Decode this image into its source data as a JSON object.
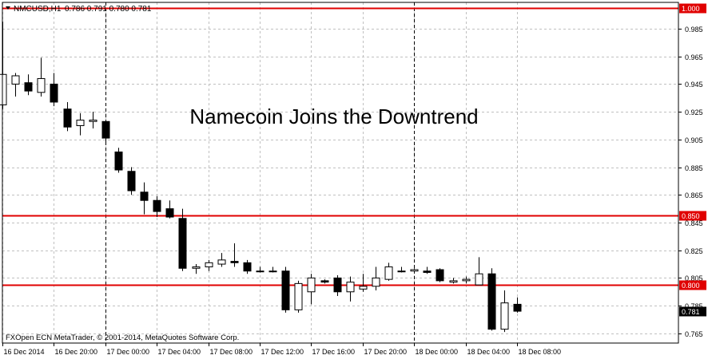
{
  "header": {
    "symbol_label": "NMCUSD,H1",
    "ohlc_label": "0.786 0.791 0.780 0.781",
    "dropdown_icon": "triangle-down-icon"
  },
  "annotation": "Namecoin Joins the Downtrend",
  "copyright": "FXOpen ECN MetaTrader, © 2001-2014, MetaQuotes Software Corp.",
  "colors": {
    "background": "#ffffff",
    "grid": "#c0c0c0",
    "candle": "#000000",
    "hline": "#e00000",
    "last_price_bg": "#000000"
  },
  "chart_data": {
    "type": "candlestick",
    "title": "Namecoin Joins the Downtrend",
    "ylim": [
      0.758,
      1.004
    ],
    "grid": true,
    "y_ticks": [
      "0.985",
      "0.965",
      "0.945",
      "0.925",
      "0.905",
      "0.885",
      "0.865",
      "0.845",
      "0.825",
      "0.805",
      "0.785",
      "0.765"
    ],
    "x_ticks": [
      {
        "label": "16 Dec 2014",
        "bar": 0
      },
      {
        "label": "16 Dec 20:00",
        "bar": 4
      },
      {
        "label": "17 Dec 00:00",
        "bar": 8
      },
      {
        "label": "17 Dec 04:00",
        "bar": 12
      },
      {
        "label": "17 Dec 08:00",
        "bar": 16
      },
      {
        "label": "17 Dec 12:00",
        "bar": 20
      },
      {
        "label": "17 Dec 16:00",
        "bar": 24
      },
      {
        "label": "17 Dec 20:00",
        "bar": 28
      },
      {
        "label": "18 Dec 00:00",
        "bar": 32
      },
      {
        "label": "18 Dec 04:00",
        "bar": 36
      },
      {
        "label": "18 Dec 08:00",
        "bar": 40
      }
    ],
    "period_separators": [
      8,
      32
    ],
    "horizontal_lines": [
      {
        "value": 1.0,
        "label": "1.000"
      },
      {
        "value": 0.85,
        "label": "0.850"
      },
      {
        "value": 0.8,
        "label": "0.800"
      }
    ],
    "last_price": {
      "value": 0.781,
      "label": "0.781"
    },
    "candles": [
      {
        "o": 0.93,
        "h": 0.99,
        "l": 0.927,
        "c": 0.952
      },
      {
        "o": 0.945,
        "h": 0.953,
        "l": 0.936,
        "c": 0.951
      },
      {
        "o": 0.946,
        "h": 0.952,
        "l": 0.937,
        "c": 0.94
      },
      {
        "o": 0.939,
        "h": 0.964,
        "l": 0.936,
        "c": 0.949
      },
      {
        "o": 0.945,
        "h": 0.953,
        "l": 0.929,
        "c": 0.932
      },
      {
        "o": 0.927,
        "h": 0.932,
        "l": 0.911,
        "c": 0.914
      },
      {
        "o": 0.915,
        "h": 0.924,
        "l": 0.908,
        "c": 0.919
      },
      {
        "o": 0.918,
        "h": 0.925,
        "l": 0.913,
        "c": 0.919
      },
      {
        "o": 0.918,
        "h": 0.919,
        "l": 0.903,
        "c": 0.906
      },
      {
        "o": 0.896,
        "h": 0.899,
        "l": 0.881,
        "c": 0.883
      },
      {
        "o": 0.882,
        "h": 0.885,
        "l": 0.865,
        "c": 0.868
      },
      {
        "o": 0.867,
        "h": 0.874,
        "l": 0.851,
        "c": 0.861
      },
      {
        "o": 0.861,
        "h": 0.864,
        "l": 0.849,
        "c": 0.853
      },
      {
        "o": 0.855,
        "h": 0.861,
        "l": 0.848,
        "c": 0.849
      },
      {
        "o": 0.848,
        "h": 0.855,
        "l": 0.81,
        "c": 0.812
      },
      {
        "o": 0.812,
        "h": 0.815,
        "l": 0.808,
        "c": 0.813
      },
      {
        "o": 0.813,
        "h": 0.818,
        "l": 0.81,
        "c": 0.816
      },
      {
        "o": 0.815,
        "h": 0.823,
        "l": 0.813,
        "c": 0.818
      },
      {
        "o": 0.817,
        "h": 0.83,
        "l": 0.813,
        "c": 0.816
      },
      {
        "o": 0.816,
        "h": 0.818,
        "l": 0.808,
        "c": 0.81
      },
      {
        "o": 0.81,
        "h": 0.813,
        "l": 0.809,
        "c": 0.81
      },
      {
        "o": 0.81,
        "h": 0.813,
        "l": 0.809,
        "c": 0.81
      },
      {
        "o": 0.81,
        "h": 0.813,
        "l": 0.78,
        "c": 0.782
      },
      {
        "o": 0.782,
        "h": 0.803,
        "l": 0.78,
        "c": 0.801
      },
      {
        "o": 0.795,
        "h": 0.808,
        "l": 0.786,
        "c": 0.805
      },
      {
        "o": 0.803,
        "h": 0.804,
        "l": 0.801,
        "c": 0.802
      },
      {
        "o": 0.805,
        "h": 0.807,
        "l": 0.792,
        "c": 0.795
      },
      {
        "o": 0.795,
        "h": 0.806,
        "l": 0.788,
        "c": 0.802
      },
      {
        "o": 0.797,
        "h": 0.808,
        "l": 0.795,
        "c": 0.799
      },
      {
        "o": 0.799,
        "h": 0.813,
        "l": 0.796,
        "c": 0.805
      },
      {
        "o": 0.804,
        "h": 0.816,
        "l": 0.803,
        "c": 0.813
      },
      {
        "o": 0.81,
        "h": 0.813,
        "l": 0.809,
        "c": 0.81
      },
      {
        "o": 0.81,
        "h": 0.812,
        "l": 0.809,
        "c": 0.811
      },
      {
        "o": 0.81,
        "h": 0.813,
        "l": 0.808,
        "c": 0.809
      },
      {
        "o": 0.811,
        "h": 0.812,
        "l": 0.802,
        "c": 0.803
      },
      {
        "o": 0.802,
        "h": 0.805,
        "l": 0.801,
        "c": 0.803
      },
      {
        "o": 0.803,
        "h": 0.806,
        "l": 0.801,
        "c": 0.804
      },
      {
        "o": 0.8,
        "h": 0.82,
        "l": 0.8,
        "c": 0.808
      },
      {
        "o": 0.808,
        "h": 0.812,
        "l": 0.767,
        "c": 0.768
      },
      {
        "o": 0.768,
        "h": 0.796,
        "l": 0.766,
        "c": 0.787
      },
      {
        "o": 0.786,
        "h": 0.791,
        "l": 0.78,
        "c": 0.781
      }
    ]
  }
}
